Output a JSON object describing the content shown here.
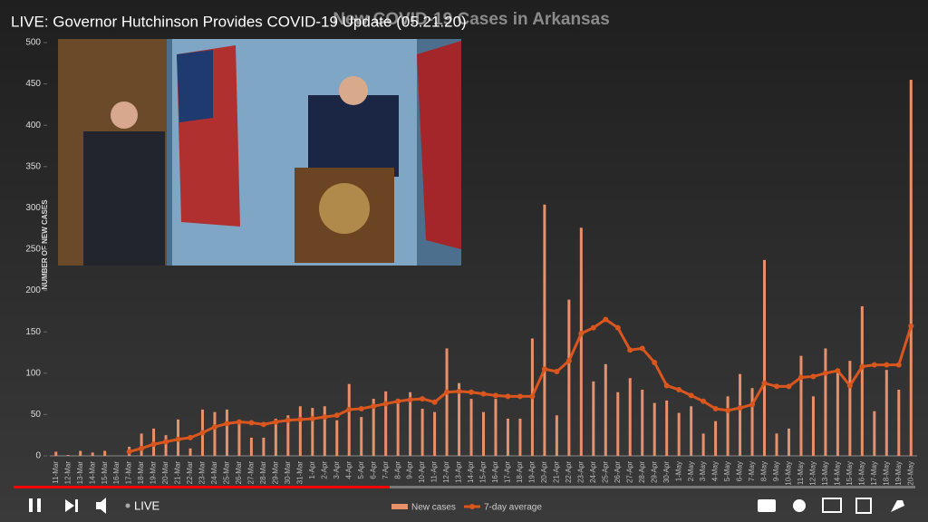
{
  "video": {
    "title": "LIVE: Governor Hutchinson Provides COVID-19 Update (05.21.20)",
    "live": "LIVE"
  },
  "chart_data": {
    "type": "bar",
    "title": "New COVID-19 Cases in Arkansas",
    "y_label": "NUMBER OF NEW CASES",
    "categories": [
      "11-Mar",
      "12-Mar",
      "13-Mar",
      "14-Mar",
      "15-Mar",
      "16-Mar",
      "17-Mar",
      "18-Mar",
      "19-Mar",
      "20-Mar",
      "21-Mar",
      "22-Mar",
      "23-Mar",
      "24-Mar",
      "25-Mar",
      "26-Mar",
      "27-Mar",
      "28-Mar",
      "29-Mar",
      "30-Mar",
      "31-Mar",
      "1-Apr",
      "2-Apr",
      "3-Apr",
      "4-Apr",
      "5-Apr",
      "6-Apr",
      "7-Apr",
      "8-Apr",
      "9-Apr",
      "10-Apr",
      "11-Apr",
      "12-Apr",
      "13-Apr",
      "14-Apr",
      "15-Apr",
      "16-Apr",
      "17-Apr",
      "18-Apr",
      "19-Apr",
      "20-Apr",
      "21-Apr",
      "22-Apr",
      "23-Apr",
      "24-Apr",
      "25-Apr",
      "26-Apr",
      "27-Apr",
      "28-Apr",
      "29-Apr",
      "30-Apr",
      "1-May",
      "2-May",
      "3-May",
      "4-May",
      "5-May",
      "6-May",
      "7-May",
      "8-May",
      "9-May",
      "10-May",
      "11-May",
      "12-May",
      "13-May",
      "14-May",
      "15-May",
      "16-May",
      "17-May",
      "18-May",
      "19-May",
      "20-May"
    ],
    "series": [
      {
        "name": "New cases",
        "type": "bar",
        "color": "#e8906a",
        "values": [
          5,
          1,
          6,
          4,
          6,
          0,
          11,
          27,
          33,
          25,
          44,
          9,
          56,
          53,
          56,
          42,
          22,
          22,
          45,
          49,
          60,
          58,
          60,
          43,
          87,
          47,
          69,
          78,
          69,
          77,
          57,
          53,
          130,
          88,
          69,
          53,
          69,
          45,
          45,
          142,
          304,
          49,
          189,
          276,
          90,
          111,
          77,
          94,
          80,
          64,
          67,
          52,
          60,
          27,
          42,
          72,
          99,
          82,
          237,
          27,
          33,
          121,
          72,
          130,
          105,
          115,
          181,
          54,
          104,
          80,
          455
        ]
      },
      {
        "name": "7-day average",
        "type": "line",
        "color": "#d9561e",
        "values": [
          null,
          null,
          null,
          null,
          null,
          null,
          5,
          9,
          14,
          17,
          20,
          22,
          28,
          35,
          39,
          41,
          40,
          38,
          41,
          43,
          44,
          45,
          47,
          49,
          56,
          57,
          60,
          63,
          66,
          68,
          69,
          65,
          77,
          78,
          77,
          75,
          73,
          72,
          72,
          72,
          105,
          102,
          115,
          148,
          155,
          165,
          155,
          128,
          130,
          113,
          85,
          80,
          73,
          66,
          57,
          55,
          58,
          62,
          88,
          84,
          84,
          95,
          96,
          100,
          103,
          85,
          108,
          110,
          110,
          110,
          157
        ]
      }
    ],
    "ylim": [
      0,
      500
    ],
    "yticks": [
      0,
      50,
      100,
      150,
      200,
      250,
      300,
      350,
      400,
      450,
      500
    ],
    "grid": false
  }
}
